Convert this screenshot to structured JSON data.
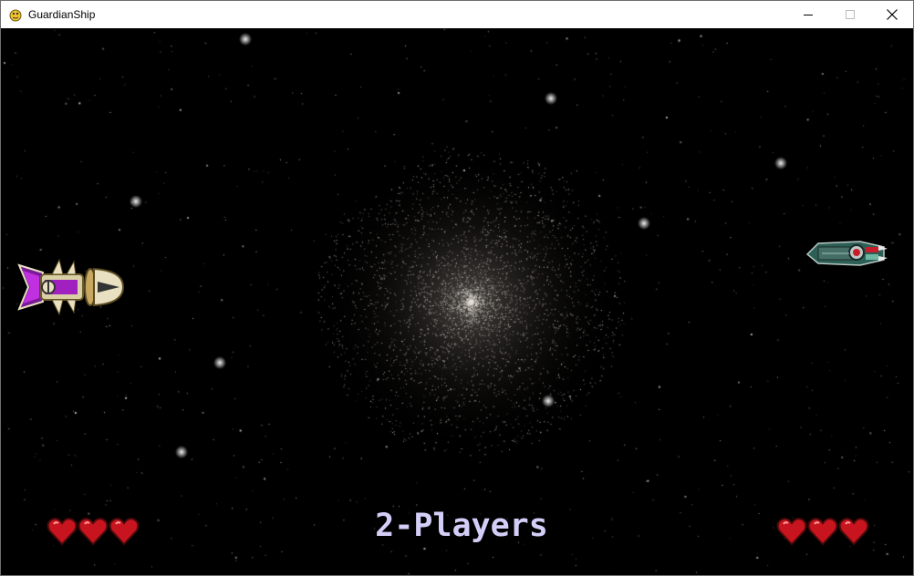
{
  "window": {
    "title": "GuardianShip",
    "app_icon": "pygame-snake-icon",
    "controls": [
      "minimize-icon",
      "maximize-icon",
      "close-icon"
    ]
  },
  "game": {
    "mode_label": "2-Players",
    "player1": {
      "ship_icon": "purple-gold-spaceship-icon",
      "lives": 3
    },
    "player2": {
      "ship_icon": "teal-red-spaceship-icon",
      "lives": 3
    },
    "colors": {
      "background": "#000000",
      "mode_label": "#d3cef7",
      "heart": "#c8141e",
      "player1_ship": "#a020c0",
      "player2_ship": "#3c7a6e"
    }
  }
}
